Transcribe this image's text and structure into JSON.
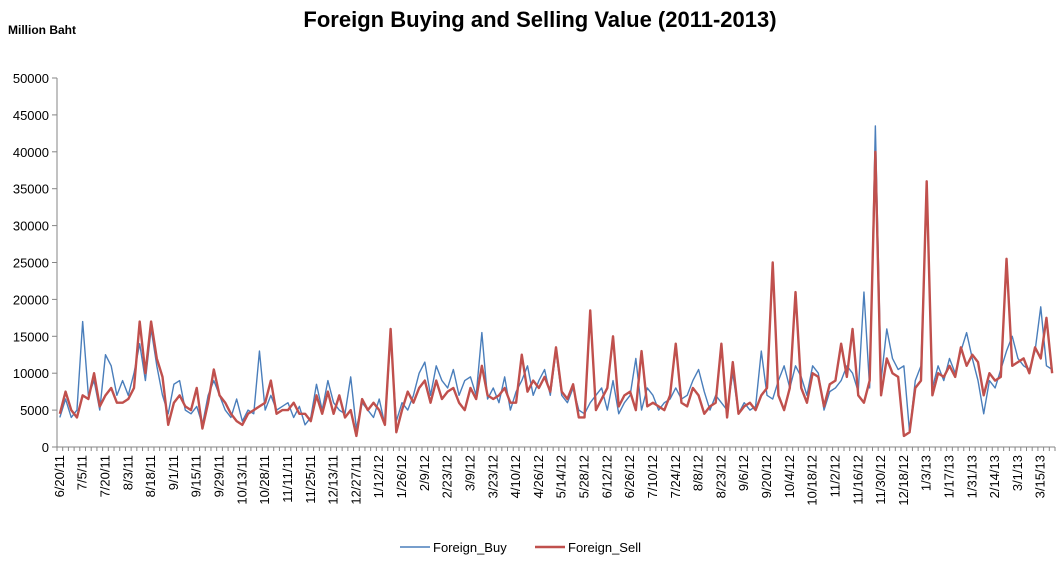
{
  "chart_data": {
    "type": "line",
    "title": "Foreign Buying and Selling Value (2011-2013)",
    "y_label": "Million Baht",
    "categories": [
      "6/20/11",
      null,
      null,
      null,
      "7/5/11",
      null,
      null,
      null,
      "7/20/11",
      null,
      null,
      null,
      "8/3/11",
      null,
      null,
      null,
      "8/18/11",
      null,
      null,
      null,
      "9/1/11",
      null,
      null,
      null,
      "9/15/11",
      null,
      null,
      null,
      "9/29/11",
      null,
      null,
      null,
      "10/13/11",
      null,
      null,
      null,
      "10/28/11",
      null,
      null,
      null,
      "11/11/11",
      null,
      null,
      null,
      "11/25/11",
      null,
      null,
      null,
      "12/13/11",
      null,
      null,
      null,
      "12/27/11",
      null,
      null,
      null,
      "1/12/12",
      null,
      null,
      null,
      "1/26/12",
      null,
      null,
      null,
      "2/9/12",
      null,
      null,
      null,
      "2/23/12",
      null,
      null,
      null,
      "3/9/12",
      null,
      null,
      null,
      "3/23/12",
      null,
      null,
      null,
      "4/10/12",
      null,
      null,
      null,
      "4/26/12",
      null,
      null,
      null,
      "5/14/12",
      null,
      null,
      null,
      "5/28/12",
      null,
      null,
      null,
      "6/12/12",
      null,
      null,
      null,
      "6/26/12",
      null,
      null,
      null,
      "7/10/12",
      null,
      null,
      null,
      "7/24/12",
      null,
      null,
      null,
      "8/8/12",
      null,
      null,
      null,
      "8/23/12",
      null,
      null,
      null,
      "9/6/12",
      null,
      null,
      null,
      "9/20/12",
      null,
      null,
      null,
      "10/4/12",
      null,
      null,
      null,
      "10/18/12",
      null,
      null,
      null,
      "11/2/12",
      null,
      null,
      null,
      "11/16/12",
      null,
      null,
      null,
      "11/30/12",
      null,
      null,
      null,
      "12/18/12",
      null,
      null,
      null,
      "1/3/13",
      null,
      null,
      null,
      "1/17/13",
      null,
      null,
      null,
      "1/31/13",
      null,
      null,
      null,
      "2/14/13",
      null,
      null,
      null,
      "3/1/13",
      null,
      null,
      null,
      "3/15/13",
      null,
      null
    ],
    "series": [
      {
        "name": "Foreign_Buy",
        "color": "#4a7ebb",
        "values": [
          4000,
          6500,
          4000,
          5000,
          17000,
          7000,
          9000,
          5000,
          12500,
          11000,
          7000,
          9000,
          7000,
          10000,
          14000,
          9000,
          16000,
          11000,
          7000,
          4500,
          8500,
          9000,
          5000,
          4500,
          5500,
          3000,
          7000,
          9000,
          7000,
          5000,
          4000,
          6500,
          3500,
          5000,
          4500,
          13000,
          5000,
          7000,
          5000,
          5500,
          6000,
          4000,
          5500,
          3000,
          4000,
          8500,
          5000,
          9000,
          6000,
          5000,
          4500,
          9500,
          2500,
          6000,
          5000,
          4000,
          6500,
          3000,
          15000,
          3500,
          6000,
          5000,
          7000,
          10000,
          11500,
          7000,
          11000,
          9000,
          8000,
          10500,
          7000,
          9000,
          9500,
          7000,
          15500,
          6500,
          8000,
          6000,
          9500,
          5000,
          7500,
          9000,
          11000,
          7000,
          9000,
          10500,
          7000,
          13000,
          7000,
          6000,
          8000,
          5000,
          4500,
          6000,
          7000,
          8000,
          5000,
          9000,
          4500,
          6000,
          7000,
          12000,
          5000,
          8000,
          7000,
          5000,
          6000,
          6500,
          8000,
          6500,
          7000,
          9000,
          10500,
          7500,
          5000,
          7000,
          6000,
          5000,
          10000,
          4500,
          6000,
          5000,
          5500,
          13000,
          7000,
          6500,
          9000,
          11000,
          8000,
          11000,
          9500,
          7000,
          11000,
          10000,
          5000,
          7500,
          8000,
          9000,
          11000,
          10000,
          7500,
          21000,
          8000,
          43500,
          9000,
          16000,
          12000,
          10500,
          11000,
          2000,
          9000,
          11000,
          35000,
          8000,
          11000,
          9000,
          12000,
          10000,
          13000,
          15500,
          12000,
          9000,
          4500,
          9000,
          8000,
          10500,
          13000,
          15000,
          12000,
          11000,
          10500,
          13000,
          19000,
          11000,
          10500
        ]
      },
      {
        "name": "Foreign_Sell",
        "color": "#c0504d",
        "values": [
          4500,
          7500,
          5000,
          4000,
          7000,
          6500,
          10000,
          5500,
          7000,
          8000,
          6000,
          6000,
          6500,
          8000,
          17000,
          10000,
          17000,
          12000,
          9500,
          3000,
          6000,
          7000,
          5500,
          5000,
          8000,
          2500,
          6000,
          10500,
          7000,
          6000,
          4500,
          3500,
          3000,
          4500,
          5000,
          5500,
          6000,
          9000,
          4500,
          5000,
          5000,
          6000,
          4500,
          4500,
          3500,
          7000,
          4500,
          7500,
          4500,
          7000,
          4000,
          5000,
          1500,
          6500,
          5000,
          6000,
          5000,
          3000,
          16000,
          2000,
          5000,
          7500,
          6000,
          8000,
          9000,
          6000,
          9000,
          6500,
          7500,
          8000,
          6000,
          5000,
          8000,
          6500,
          11000,
          7000,
          6500,
          7000,
          8000,
          6000,
          6000,
          12500,
          7500,
          9000,
          8000,
          9500,
          7500,
          13500,
          7500,
          6500,
          8500,
          4000,
          4000,
          18500,
          5000,
          6500,
          8000,
          15000,
          5500,
          7000,
          7500,
          5000,
          13000,
          5500,
          6000,
          5500,
          5000,
          7000,
          14000,
          6000,
          5500,
          8000,
          7000,
          4500,
          5500,
          6000,
          14000,
          4000,
          11500,
          4500,
          5500,
          6000,
          5000,
          7000,
          8000,
          25000,
          7000,
          5000,
          8000,
          21000,
          8000,
          6000,
          10000,
          9500,
          5500,
          8500,
          9000,
          14000,
          9500,
          16000,
          7000,
          6000,
          9000,
          40000,
          7000,
          12000,
          10000,
          9500,
          1500,
          2000,
          8000,
          9000,
          36000,
          7000,
          10000,
          9500,
          11000,
          9500,
          13500,
          11000,
          12500,
          11500,
          7000,
          10000,
          9000,
          9500,
          25500,
          11000,
          11500,
          12000,
          10000,
          13500,
          12000,
          17500,
          10000
        ]
      }
    ],
    "ylim": [
      0,
      50000
    ],
    "yticks": [
      0,
      5000,
      10000,
      15000,
      20000,
      25000,
      30000,
      35000,
      40000,
      45000,
      50000
    ],
    "grid": false,
    "legend": "bottom"
  }
}
